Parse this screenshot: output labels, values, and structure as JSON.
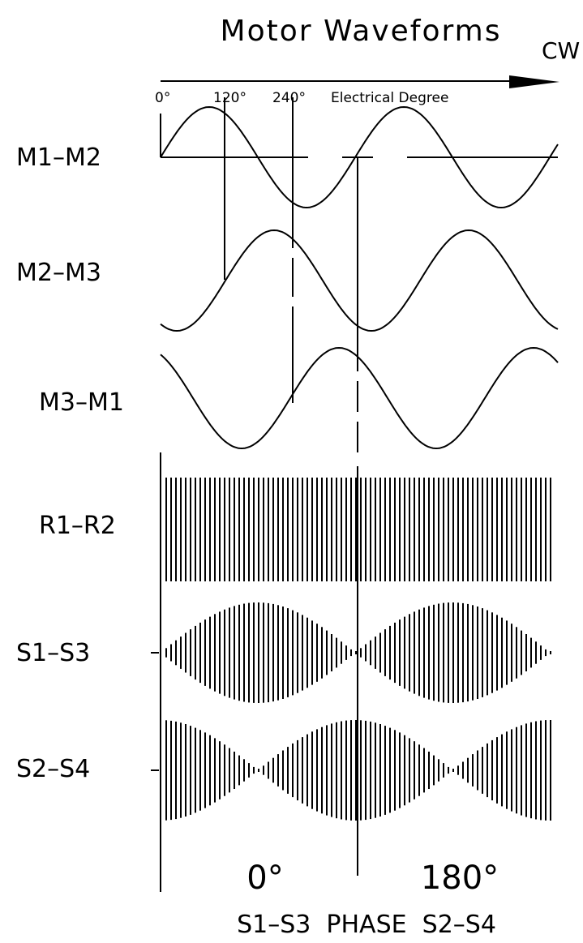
{
  "title": "Motor Waveforms",
  "direction_label": "CW",
  "axis": {
    "tick_labels": [
      "0°",
      "120°",
      "240°"
    ],
    "label": "Electrical Degree"
  },
  "channels": [
    {
      "id": "m1m2",
      "label": "M1–M2",
      "type": "sine",
      "phase_deg": 0
    },
    {
      "id": "m2m3",
      "label": "M2–M3",
      "type": "sine",
      "phase_deg": -120
    },
    {
      "id": "m3m1",
      "label": "M3–M1",
      "type": "sine",
      "phase_deg": 120
    },
    {
      "id": "r1r2",
      "label": "R1–R2",
      "type": "carrier"
    },
    {
      "id": "s1s3",
      "label": "S1–S3",
      "type": "envelope",
      "envelope": "sin"
    },
    {
      "id": "s2s4",
      "label": "S2–S4",
      "type": "envelope",
      "envelope": "cos"
    }
  ],
  "phase_labels": {
    "left": "0°",
    "right": "180°",
    "caption": "S1–S3  PHASE  S2–S4"
  },
  "colors": {
    "line": "#000000",
    "background": "#ffffff"
  }
}
